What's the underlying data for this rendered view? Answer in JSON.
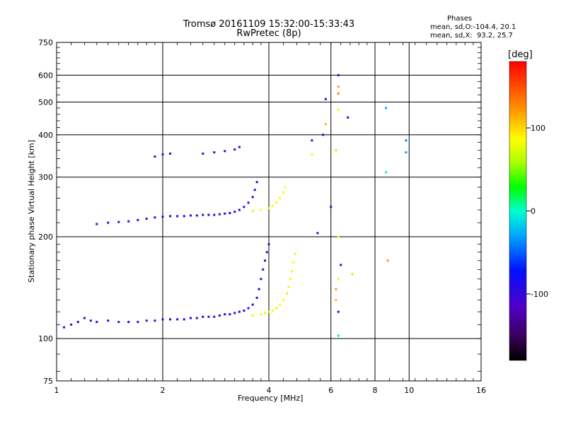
{
  "header": {
    "title_line1": "Tromsø 20161109 15:32:00-15:33:43",
    "title_line2": "RwPretec (8p)",
    "phases_title": "Phases",
    "phases_o": "mean, sd,O:-104.4, 20.1",
    "phases_x": "mean, sd,X:  93.2, 25.7"
  },
  "chart_data": {
    "type": "scatter",
    "xlabel": "Frequency [MHz]",
    "ylabel": "Stationary phase Virtual Height [km]",
    "x_scale": "log2",
    "y_scale": "log",
    "xlim": [
      1,
      16
    ],
    "ylim": [
      75,
      750
    ],
    "x_ticks": [
      "1",
      "2",
      "4",
      "6",
      "8",
      "10",
      "16"
    ],
    "x_tick_values": [
      1,
      2,
      4,
      6,
      8,
      10,
      16
    ],
    "y_ticks": [
      "75",
      "100",
      "200",
      "300",
      "400",
      "500",
      "600",
      "750"
    ],
    "y_tick_values": [
      75,
      100,
      200,
      300,
      400,
      500,
      600,
      750
    ],
    "grid": true,
    "colorbar": {
      "label": "[deg]",
      "range": [
        -180,
        180
      ],
      "ticks": [
        "100",
        "0",
        "-100"
      ],
      "tick_values": [
        100,
        0,
        -100
      ]
    },
    "series": [
      {
        "role": "E / F1 trace (O-mode)",
        "points": [
          [
            1.05,
            108,
            -110
          ],
          [
            1.1,
            110,
            -100
          ],
          [
            1.15,
            112,
            -120
          ],
          [
            1.2,
            115,
            -105
          ],
          [
            1.25,
            113,
            -95
          ],
          [
            1.3,
            112,
            -110
          ],
          [
            1.4,
            113,
            -100
          ],
          [
            1.5,
            112,
            -115
          ],
          [
            1.6,
            112,
            -90
          ],
          [
            1.7,
            112,
            -100
          ],
          [
            1.8,
            113,
            -110
          ],
          [
            1.9,
            113,
            -105
          ],
          [
            2.0,
            114,
            -100
          ],
          [
            2.1,
            114,
            -90
          ],
          [
            2.2,
            114,
            -110
          ],
          [
            2.3,
            114,
            -100
          ],
          [
            2.4,
            115,
            -95
          ],
          [
            2.5,
            115,
            -105
          ],
          [
            2.6,
            116,
            -80
          ],
          [
            2.7,
            116,
            -110
          ],
          [
            2.8,
            116,
            -100
          ],
          [
            2.9,
            117,
            -90
          ],
          [
            3.0,
            118,
            -100
          ],
          [
            3.1,
            118,
            -95
          ],
          [
            3.2,
            119,
            -110
          ],
          [
            3.3,
            120,
            -100
          ],
          [
            3.4,
            121,
            -90
          ],
          [
            3.5,
            123,
            -100
          ],
          [
            3.6,
            126,
            -110
          ],
          [
            3.7,
            132,
            -100
          ],
          [
            3.75,
            140,
            -95
          ],
          [
            3.8,
            150,
            -100
          ],
          [
            3.85,
            160,
            -110
          ],
          [
            3.9,
            170,
            -100
          ],
          [
            3.95,
            180,
            -95
          ],
          [
            4.0,
            190,
            -105
          ]
        ]
      },
      {
        "role": "X-mode low trace",
        "points": [
          [
            3.6,
            117,
            70
          ],
          [
            3.8,
            118,
            80
          ],
          [
            3.9,
            119,
            75
          ],
          [
            4.0,
            120,
            85
          ],
          [
            4.1,
            121,
            80
          ],
          [
            4.2,
            123,
            90
          ],
          [
            4.3,
            126,
            85
          ],
          [
            4.4,
            130,
            90
          ],
          [
            4.5,
            136,
            95
          ],
          [
            4.55,
            142,
            90
          ],
          [
            4.6,
            150,
            85
          ],
          [
            4.65,
            158,
            80
          ],
          [
            4.7,
            168,
            85
          ],
          [
            4.75,
            178,
            90
          ]
        ]
      },
      {
        "role": "F2 trace (O-mode)",
        "points": [
          [
            1.3,
            218,
            -110
          ],
          [
            1.4,
            220,
            -100
          ],
          [
            1.5,
            221,
            -115
          ],
          [
            1.6,
            222,
            -105
          ],
          [
            1.7,
            224,
            -100
          ],
          [
            1.8,
            226,
            -110
          ],
          [
            1.9,
            228,
            -95
          ],
          [
            2.0,
            229,
            -100
          ],
          [
            2.1,
            230,
            -110
          ],
          [
            2.2,
            230,
            -105
          ],
          [
            2.3,
            230,
            -100
          ],
          [
            2.4,
            231,
            -95
          ],
          [
            2.5,
            231,
            -110
          ],
          [
            2.6,
            232,
            -100
          ],
          [
            2.7,
            232,
            -105
          ],
          [
            2.8,
            232,
            -100
          ],
          [
            2.9,
            233,
            -110
          ],
          [
            3.0,
            234,
            -100
          ],
          [
            3.1,
            235,
            -95
          ],
          [
            3.2,
            237,
            -105
          ],
          [
            3.3,
            240,
            -100
          ],
          [
            3.4,
            245,
            -110
          ],
          [
            3.5,
            252,
            -100
          ],
          [
            3.6,
            262,
            -95
          ],
          [
            3.65,
            275,
            -105
          ],
          [
            3.7,
            290,
            -100
          ]
        ]
      },
      {
        "role": "F2 X-mode trace",
        "points": [
          [
            3.6,
            238,
            75
          ],
          [
            3.8,
            240,
            80
          ],
          [
            4.0,
            243,
            85
          ],
          [
            4.1,
            247,
            80
          ],
          [
            4.2,
            252,
            90
          ],
          [
            4.3,
            260,
            85
          ],
          [
            4.4,
            270,
            80
          ],
          [
            4.45,
            280,
            85
          ]
        ]
      },
      {
        "role": "second-hop echoes",
        "points": [
          [
            1.9,
            345,
            -105
          ],
          [
            2.0,
            350,
            -110
          ],
          [
            2.1,
            352,
            -100
          ],
          [
            2.6,
            352,
            -100
          ],
          [
            2.8,
            355,
            -105
          ],
          [
            3.0,
            358,
            -100
          ],
          [
            3.2,
            362,
            -110
          ],
          [
            3.3,
            368,
            -100
          ]
        ]
      },
      {
        "role": "scattered high-frequency echoes",
        "points": [
          [
            5.3,
            385,
            -110
          ],
          [
            5.3,
            350,
            80
          ],
          [
            5.7,
            400,
            -110
          ],
          [
            5.8,
            510,
            -100
          ],
          [
            5.8,
            430,
            110
          ],
          [
            6.3,
            600,
            -100
          ],
          [
            6.3,
            555,
            120
          ],
          [
            6.3,
            530,
            130
          ],
          [
            6.3,
            475,
            90
          ],
          [
            6.2,
            360,
            100
          ],
          [
            6.7,
            450,
            -90
          ],
          [
            8.6,
            480,
            -30
          ],
          [
            8.6,
            310,
            10
          ],
          [
            8.7,
            170,
            120
          ],
          [
            9.8,
            385,
            -40
          ],
          [
            9.8,
            355,
            -30
          ],
          [
            6.0,
            245,
            -100
          ],
          [
            6.3,
            200,
            80
          ],
          [
            6.4,
            165,
            -100
          ],
          [
            6.3,
            150,
            80
          ],
          [
            6.2,
            140,
            120
          ],
          [
            6.2,
            130,
            110
          ],
          [
            6.3,
            120,
            -110
          ],
          [
            6.3,
            102,
            10
          ],
          [
            6.9,
            155,
            60
          ],
          [
            5.5,
            205,
            -110
          ]
        ]
      }
    ]
  }
}
